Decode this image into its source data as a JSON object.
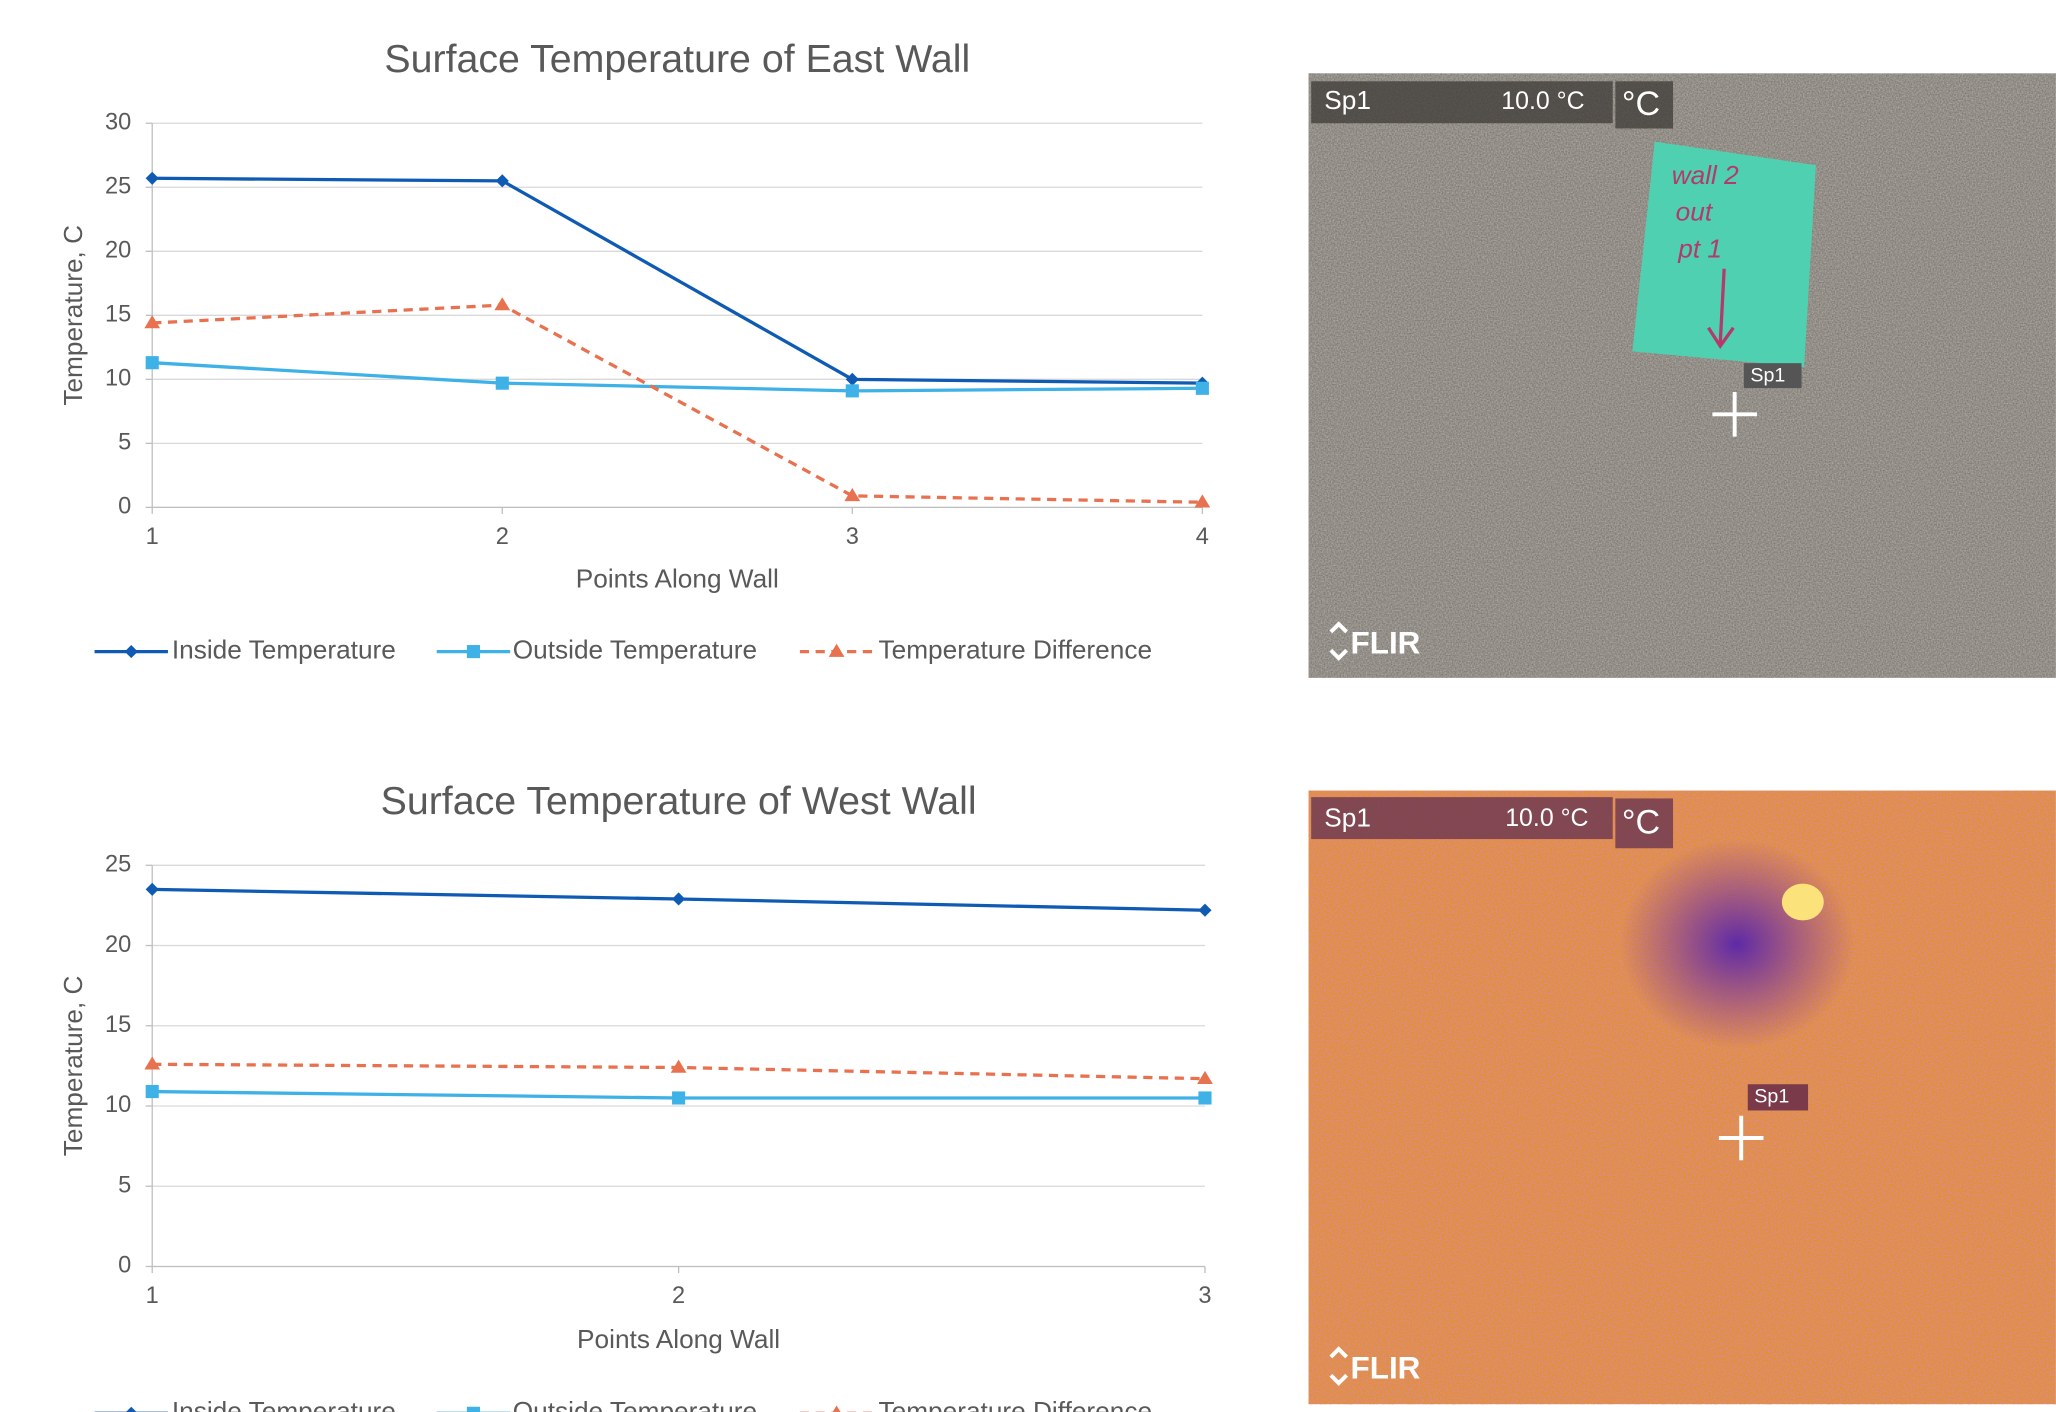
{
  "chart_data": [
    {
      "type": "line",
      "title": "Surface Temperature of East Wall",
      "x_label": "Points Along Wall",
      "y_label": "Temperature, C",
      "categories": [
        "1",
        "2",
        "3",
        "4"
      ],
      "series": [
        {
          "name": "Inside Temperature",
          "color": "#0f5bb3",
          "marker": "diamond",
          "dash": false,
          "values": [
            25.7,
            25.5,
            10.0,
            9.7
          ]
        },
        {
          "name": "Outside Temperature",
          "color": "#3eb2e6",
          "marker": "square",
          "dash": false,
          "values": [
            11.3,
            9.7,
            9.1,
            9.3
          ]
        },
        {
          "name": "Temperature Difference",
          "color": "#e8714f",
          "marker": "triangle",
          "dash": true,
          "values": [
            14.4,
            15.8,
            0.9,
            0.4
          ]
        }
      ],
      "ylim": [
        0,
        30
      ],
      "yticks": [
        0,
        5,
        10,
        15,
        20,
        25,
        30
      ],
      "grid": true,
      "legend": "bottom"
    },
    {
      "type": "line",
      "title": "Surface Temperature of West Wall",
      "x_label": "Points Along Wall",
      "y_label": "Temperature, C",
      "categories": [
        "1",
        "2",
        "3"
      ],
      "series": [
        {
          "name": "Inside Temperature",
          "color": "#0f5bb3",
          "marker": "diamond",
          "dash": false,
          "values": [
            23.5,
            22.9,
            22.2
          ]
        },
        {
          "name": "Outside Temperature",
          "color": "#3eb2e6",
          "marker": "square",
          "dash": false,
          "values": [
            10.9,
            10.5,
            10.5
          ]
        },
        {
          "name": "Temperature Difference",
          "color": "#e8714f",
          "marker": "triangle",
          "dash": true,
          "values": [
            12.6,
            12.4,
            11.7
          ]
        }
      ],
      "ylim": [
        0,
        25
      ],
      "yticks": [
        0,
        5,
        10,
        15,
        20,
        25
      ],
      "grid": true,
      "legend": "bottom"
    }
  ],
  "photos": [
    {
      "spot": "Sp1",
      "temp": "10.0 °C",
      "unit": "°C",
      "brand": "FLIR",
      "marker": "Sp1",
      "note": [
        "wall 2",
        "out",
        "pt 1"
      ]
    },
    {
      "spot": "Sp1",
      "temp": "10.0 °C",
      "unit": "°C",
      "brand": "FLIR",
      "marker": "Sp1"
    }
  ]
}
